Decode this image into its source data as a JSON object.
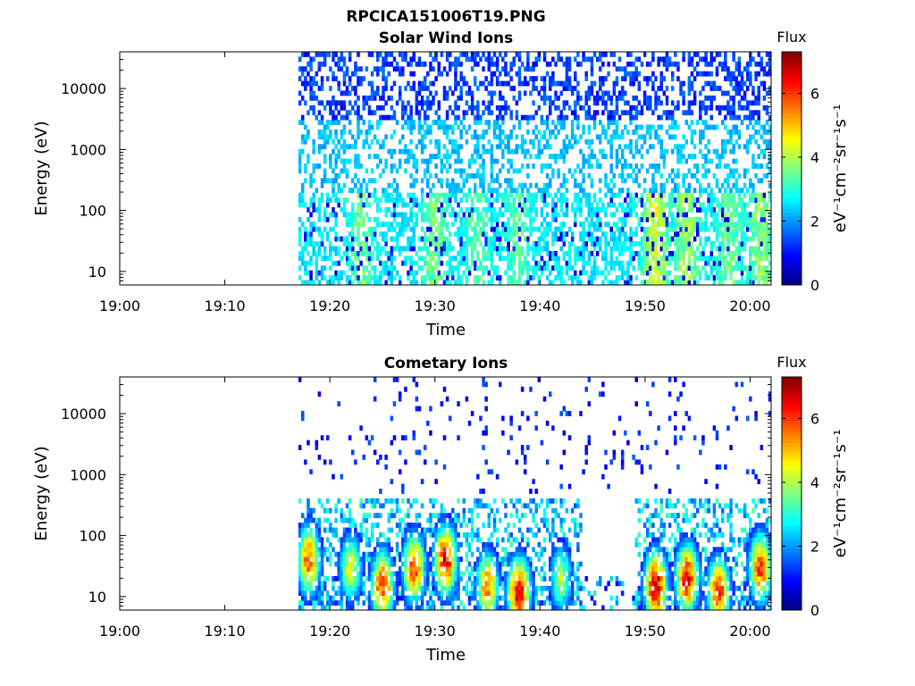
{
  "figure": {
    "filename_title": "RPCICA151006T19.PNG"
  },
  "chart_data": [
    {
      "type": "heatmap",
      "title": "Solar Wind Ions",
      "xlabel": "Time",
      "ylabel": "Energy (eV)",
      "x_ticks": [
        "19:00",
        "19:10",
        "19:20",
        "19:30",
        "19:40",
        "19:50",
        "20:00"
      ],
      "x_range": [
        "19:00",
        "20:02"
      ],
      "y_scale": "log",
      "y_ticks": [
        10,
        100,
        1000,
        10000
      ],
      "y_tick_labels": [
        "10",
        "100",
        "1000",
        "10000"
      ],
      "y_range": [
        6,
        40000
      ],
      "data_start": "19:17",
      "colorbar": {
        "title": "Flux",
        "label": "eV⁻¹cm⁻²sr⁻¹s⁻¹",
        "ticks": [
          0,
          2,
          4,
          6
        ],
        "range": [
          0,
          7.3
        ],
        "colormap": "jet"
      },
      "features": {
        "background_flux": 2.0,
        "high_energy_band_eV": [
          3000,
          30000
        ],
        "high_energy_flux": 0.9,
        "low_energy_enhancements": [
          {
            "time": "19:23",
            "flux": 3.2
          },
          {
            "time": "19:30",
            "flux": 3.3
          },
          {
            "time": "19:34",
            "flux": 3.0
          },
          {
            "time": "19:38",
            "flux": 3.0
          },
          {
            "time": "19:51",
            "flux": 4.2
          },
          {
            "time": "19:54",
            "flux": 3.8
          },
          {
            "time": "19:58",
            "flux": 3.2
          },
          {
            "time": "20:01",
            "flux": 3.5
          }
        ]
      }
    },
    {
      "type": "heatmap",
      "title": "Cometary Ions",
      "xlabel": "Time",
      "ylabel": "Energy (eV)",
      "x_ticks": [
        "19:00",
        "19:10",
        "19:20",
        "19:30",
        "19:40",
        "19:50",
        "20:00"
      ],
      "x_range": [
        "19:00",
        "20:02"
      ],
      "y_scale": "log",
      "y_ticks": [
        10,
        100,
        1000,
        10000
      ],
      "y_tick_labels": [
        "10",
        "100",
        "1000",
        "10000"
      ],
      "y_range": [
        6,
        40000
      ],
      "data_start": "19:17",
      "colorbar": {
        "title": "Flux",
        "label": "eV⁻¹cm⁻²sr⁻¹s⁻¹",
        "ticks": [
          0,
          2,
          4,
          6
        ],
        "range": [
          0,
          7.3
        ],
        "colormap": "jet"
      },
      "features": {
        "sparse_high_energy_flux": 0.6,
        "ion_bursts": [
          {
            "time": "19:18",
            "peak_flux": 5.8,
            "peak_energy_eV": 40
          },
          {
            "time": "19:22",
            "peak_flux": 4.5,
            "peak_energy_eV": 30
          },
          {
            "time": "19:25",
            "peak_flux": 6.2,
            "peak_energy_eV": 15
          },
          {
            "time": "19:28",
            "peak_flux": 6.0,
            "peak_energy_eV": 30
          },
          {
            "time": "19:31",
            "peak_flux": 6.6,
            "peak_energy_eV": 40
          },
          {
            "time": "19:35",
            "peak_flux": 5.5,
            "peak_energy_eV": 15
          },
          {
            "time": "19:38",
            "peak_flux": 6.8,
            "peak_energy_eV": 12
          },
          {
            "time": "19:42",
            "peak_flux": 4.0,
            "peak_energy_eV": 20
          },
          {
            "time": "19:51",
            "peak_flux": 7.0,
            "peak_energy_eV": 15
          },
          {
            "time": "19:54",
            "peak_flux": 6.5,
            "peak_energy_eV": 20
          },
          {
            "time": "19:57",
            "peak_flux": 6.2,
            "peak_energy_eV": 12
          },
          {
            "time": "20:01",
            "peak_flux": 6.0,
            "peak_energy_eV": 30
          }
        ]
      }
    }
  ]
}
